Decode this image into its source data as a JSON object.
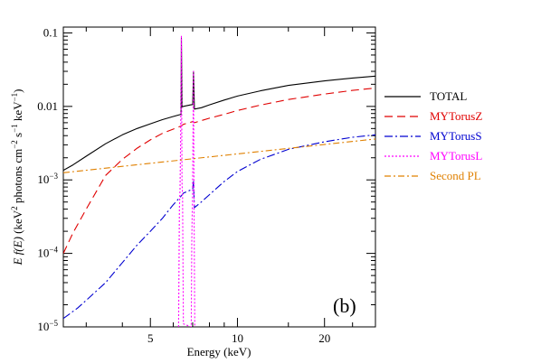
{
  "chart_data": {
    "type": "line",
    "panel_label": "(b)",
    "xlabel": "Energy (keV)",
    "ylabel": "E f(E) (keV² photons cm⁻² s⁻¹ keV⁻¹)",
    "ylabel_parts": {
      "prefix": "E ",
      "fe": "f(E)",
      "mid": " (keV",
      "sq": "2",
      "rest1": " photons cm",
      "m2": "−2",
      "rest2": " s",
      "m1a": "−1",
      "rest3": " keV",
      "m1b": "−1",
      "close": ")"
    },
    "x_scale": "log",
    "y_scale": "log",
    "xlim": [
      2.5,
      30
    ],
    "ylim": [
      1e-05,
      0.12
    ],
    "x_ticks": [
      {
        "value": 5,
        "label": "5"
      },
      {
        "value": 10,
        "label": "10"
      },
      {
        "value": 20,
        "label": "20"
      }
    ],
    "y_ticks": [
      {
        "value": 0.1,
        "mant": "0.1",
        "exp": ""
      },
      {
        "value": 0.01,
        "mant": "0.01",
        "exp": ""
      },
      {
        "value": 0.001,
        "mant": "10",
        "exp": "−3"
      },
      {
        "value": 0.0001,
        "mant": "10",
        "exp": "−4"
      },
      {
        "value": 1e-05,
        "mant": "10",
        "exp": "−5"
      }
    ],
    "legend_position": "right",
    "series": [
      {
        "name": "TOTAL",
        "color": "#000000",
        "dash": "",
        "points": [
          [
            2.5,
            0.00135
          ],
          [
            2.7,
            0.0016
          ],
          [
            3,
            0.0021
          ],
          [
            3.5,
            0.0031
          ],
          [
            4,
            0.0041
          ],
          [
            4.5,
            0.005
          ],
          [
            5,
            0.0058
          ],
          [
            5.5,
            0.0066
          ],
          [
            6,
            0.0073
          ],
          [
            6.38,
            0.0078
          ],
          [
            6.4,
            0.085
          ],
          [
            6.43,
            0.0098
          ],
          [
            6.5,
            0.01
          ],
          [
            6.9,
            0.0105
          ],
          [
            7.0,
            0.0106
          ],
          [
            7.05,
            0.03
          ],
          [
            7.1,
            0.0092
          ],
          [
            7.5,
            0.0096
          ],
          [
            8,
            0.0105
          ],
          [
            9,
            0.0122
          ],
          [
            10,
            0.0138
          ],
          [
            12,
            0.0163
          ],
          [
            15,
            0.0193
          ],
          [
            20,
            0.0222
          ],
          [
            25,
            0.0243
          ],
          [
            30,
            0.0258
          ]
        ]
      },
      {
        "name": "MYTorusZ",
        "color": "#e00000",
        "dash": "9,5",
        "points": [
          [
            2.5,
            0.0001
          ],
          [
            2.7,
            0.00019
          ],
          [
            3,
            0.0004
          ],
          [
            3.5,
            0.00115
          ],
          [
            4,
            0.0019
          ],
          [
            4.5,
            0.0027
          ],
          [
            5,
            0.0035
          ],
          [
            5.5,
            0.0043
          ],
          [
            6,
            0.0049
          ],
          [
            6.38,
            0.0054
          ],
          [
            6.5,
            0.0057
          ],
          [
            7,
            0.0062
          ],
          [
            7.1,
            0.006
          ],
          [
            7.5,
            0.0064
          ],
          [
            8,
            0.0069
          ],
          [
            9,
            0.0078
          ],
          [
            10,
            0.0088
          ],
          [
            12,
            0.0104
          ],
          [
            15,
            0.0124
          ],
          [
            20,
            0.0147
          ],
          [
            25,
            0.0165
          ],
          [
            30,
            0.0178
          ]
        ]
      },
      {
        "name": "MYTorusS",
        "color": "#0000d0",
        "dash": "9,3,2,3",
        "points": [
          [
            2.5,
            1.3e-05
          ],
          [
            2.8,
            1.8e-05
          ],
          [
            3,
            2.3e-05
          ],
          [
            3.5,
            4e-05
          ],
          [
            4,
            7.5e-05
          ],
          [
            4.5,
            0.00013
          ],
          [
            5,
            0.0002
          ],
          [
            5.5,
            0.0003
          ],
          [
            6,
            0.00046
          ],
          [
            6.38,
            0.0006
          ],
          [
            6.5,
            0.00066
          ],
          [
            7,
            0.00075
          ],
          [
            7.05,
            0.00095
          ],
          [
            7.1,
            0.00042
          ],
          [
            7.5,
            0.0005
          ],
          [
            8,
            0.00063
          ],
          [
            9,
            0.00095
          ],
          [
            10,
            0.0013
          ],
          [
            12,
            0.0019
          ],
          [
            15,
            0.0026
          ],
          [
            20,
            0.0033
          ],
          [
            25,
            0.0038
          ],
          [
            30,
            0.0041
          ]
        ]
      },
      {
        "name": "MYTorusL",
        "color": "#ff00ff",
        "dash": "2,2",
        "points": [
          [
            6.26,
            1e-05
          ],
          [
            6.3,
            0.0004
          ],
          [
            6.33,
            0.00075
          ],
          [
            6.36,
            0.003
          ],
          [
            6.4,
            0.09
          ],
          [
            6.43,
            0.0009
          ],
          [
            6.46,
            0.0006
          ],
          [
            6.5,
            1.1e-05
          ],
          [
            6.92,
            1e-05
          ],
          [
            6.95,
            0.00015
          ],
          [
            6.99,
            0.0006
          ],
          [
            7.05,
            0.03
          ],
          [
            7.08,
            0.0004
          ],
          [
            7.12,
            1e-05
          ]
        ]
      },
      {
        "name": "Second PL",
        "color": "#e08000",
        "dash": "7,3,2,3",
        "points": [
          [
            2.5,
            0.00125
          ],
          [
            30,
            0.0036
          ]
        ]
      }
    ]
  }
}
